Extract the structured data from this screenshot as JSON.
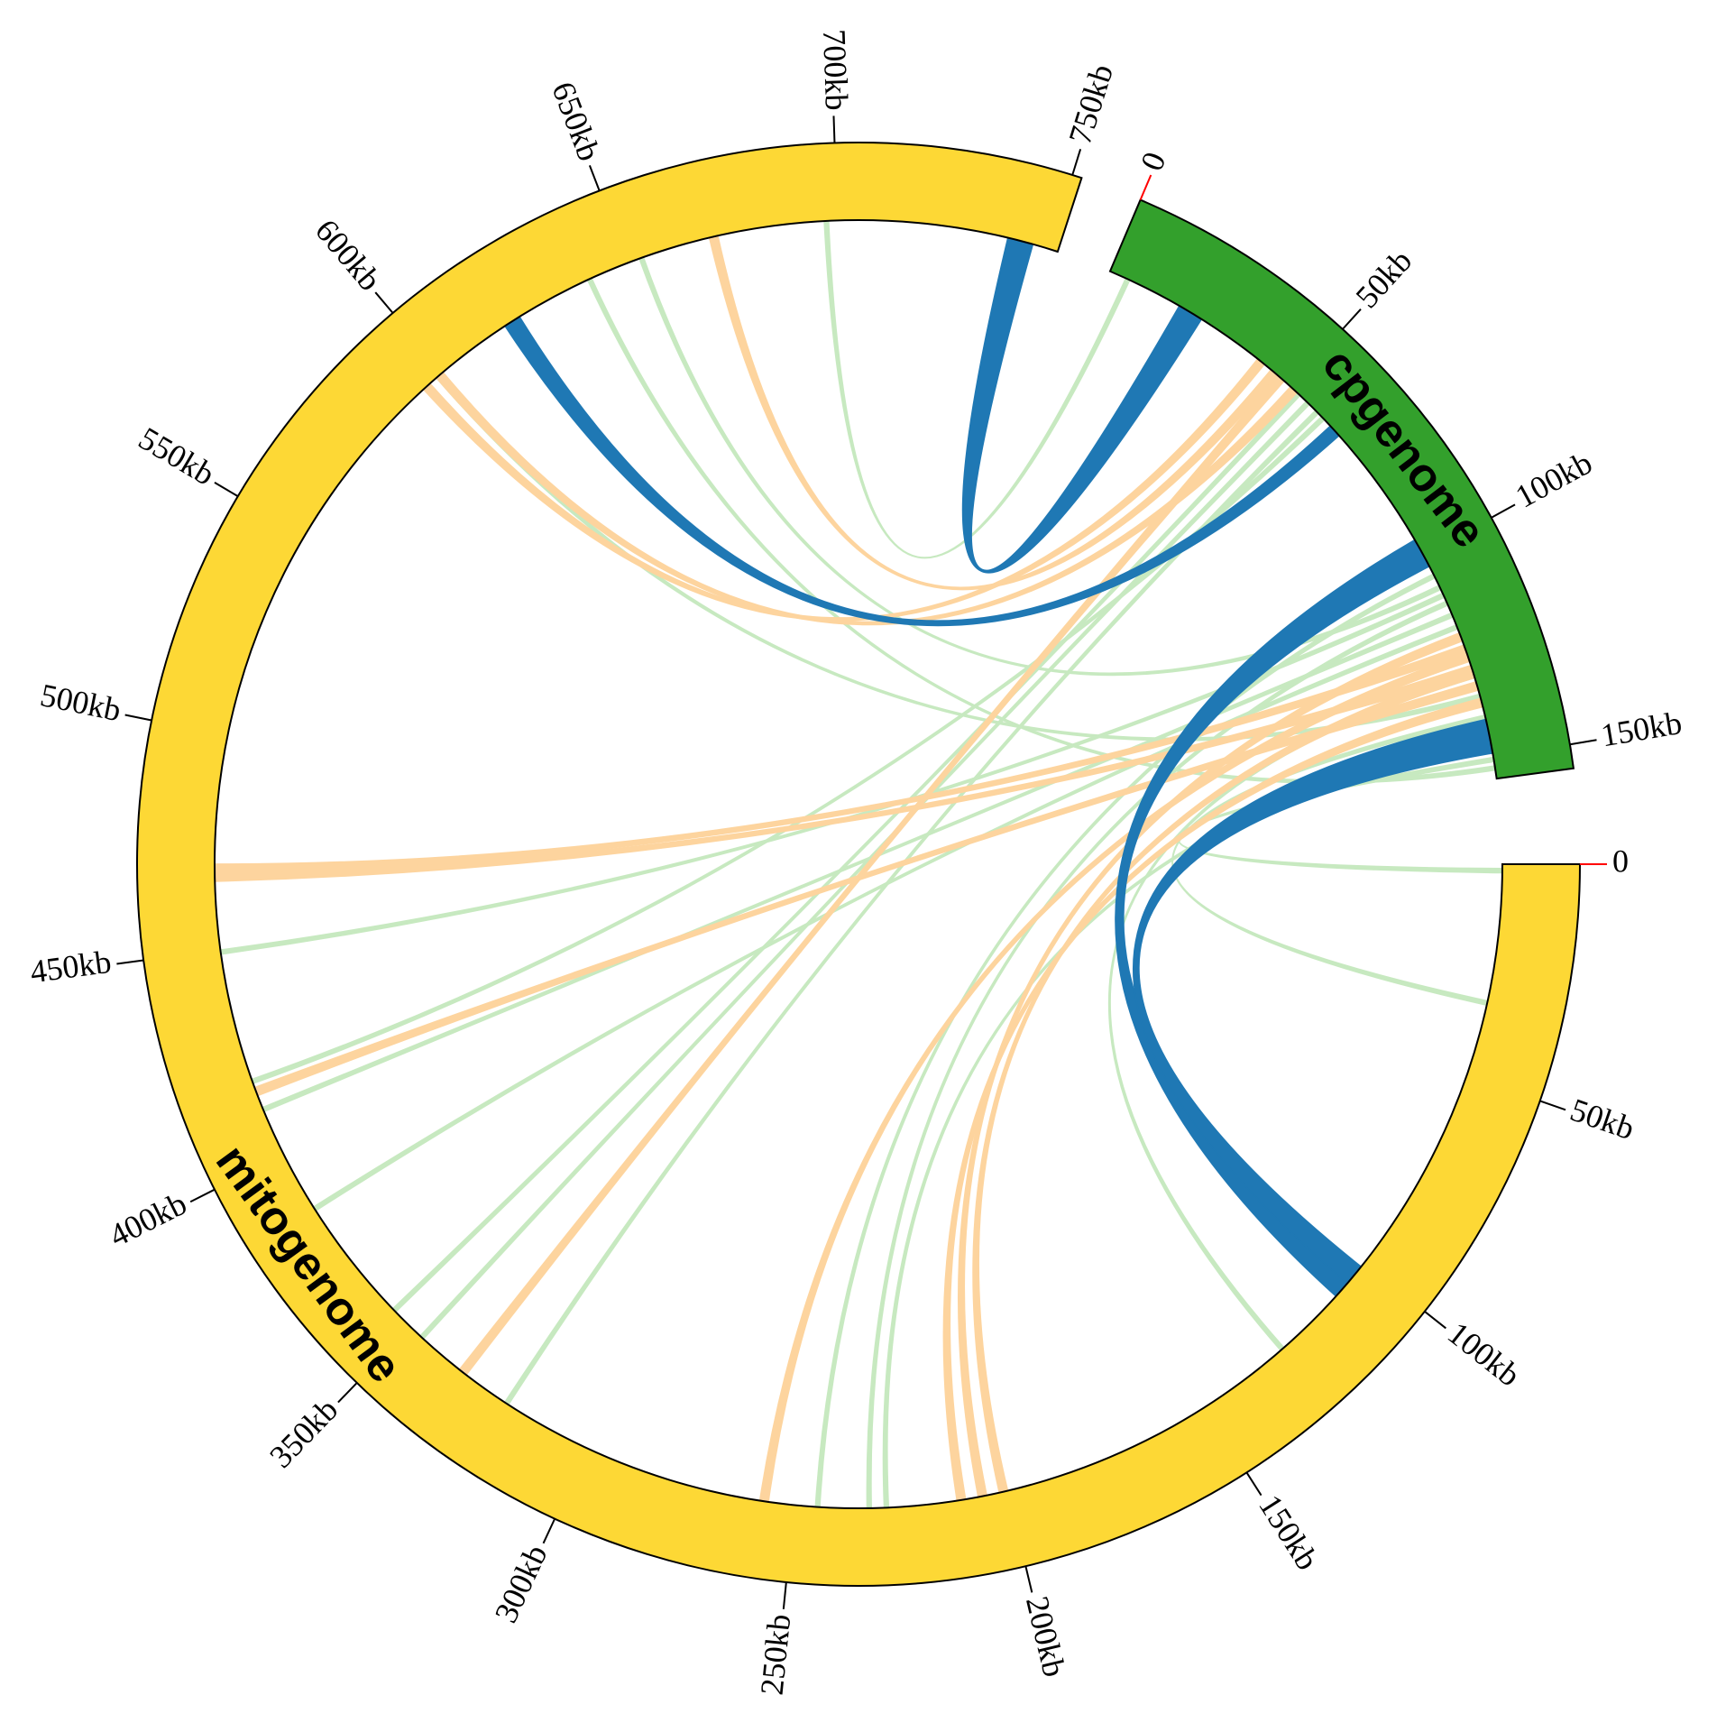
{
  "chart_data": {
    "type": "chord",
    "segments": [
      {
        "name": "mitogenome",
        "length": 752,
        "color": "#fdd835",
        "ticks": [
          0,
          {
            "value": 50,
            "label": "50kb"
          },
          {
            "value": 100,
            "label": "100kb"
          },
          {
            "value": 150,
            "label": "150kb"
          },
          {
            "value": 200,
            "label": "200kb"
          },
          {
            "value": 250,
            "label": "250kb"
          },
          {
            "value": 300,
            "label": "300kb"
          },
          {
            "value": 350,
            "label": "350kb"
          },
          {
            "value": 400,
            "label": "400kb"
          },
          {
            "value": 450,
            "label": "450kb"
          },
          {
            "value": 500,
            "label": "500kb"
          },
          {
            "value": 550,
            "label": "550kb"
          },
          {
            "value": 600,
            "label": "600kb"
          },
          {
            "value": 650,
            "label": "650kb"
          },
          {
            "value": 700,
            "label": "700kb"
          },
          {
            "value": 750,
            "label": "750kb"
          }
        ]
      },
      {
        "name": "cpgenome",
        "length": 155,
        "color": "#33a02c",
        "ticks": [
          0,
          {
            "value": 50,
            "label": "50kb"
          },
          {
            "value": 100,
            "label": "100kb"
          },
          {
            "value": 150,
            "label": "150kb"
          }
        ]
      }
    ],
    "zero_tick_color": "#ff0000",
    "links": [
      {
        "a": [
          1,
          4,
          5
        ],
        "b": [
          0,
          697,
          698
        ],
        "color": "#c7e9c0"
      },
      {
        "a": [
          1,
          150,
          151
        ],
        "b": [
          0,
          1,
          2
        ],
        "color": "#c7e9c0"
      },
      {
        "a": [
          1,
          140,
          141
        ],
        "b": [
          0,
          32,
          33
        ],
        "color": "#c7e9c0"
      },
      {
        "a": [
          1,
          130,
          131
        ],
        "b": [
          0,
          127,
          128
        ],
        "color": "#c7e9c0"
      },
      {
        "a": [
          1,
          105,
          106
        ],
        "b": [
          0,
          244,
          245
        ],
        "color": "#c7e9c0"
      },
      {
        "a": [
          1,
          110,
          111
        ],
        "b": [
          0,
          449,
          450
        ],
        "color": "#c7e9c0"
      },
      {
        "a": [
          1,
          60,
          61
        ],
        "b": [
          0,
          418,
          419
        ],
        "color": "#c7e9c0"
      },
      {
        "a": [
          1,
          115,
          116
        ],
        "b": [
          0,
          411,
          412
        ],
        "color": "#c7e9c0"
      },
      {
        "a": [
          1,
          118,
          119
        ],
        "b": [
          0,
          385,
          386
        ],
        "color": "#c7e9c0"
      },
      {
        "a": [
          1,
          55,
          56
        ],
        "b": [
          0,
          346,
          347
        ],
        "color": "#c7e9c0"
      },
      {
        "a": [
          1,
          58,
          59
        ],
        "b": [
          0,
          321,
          322
        ],
        "color": "#c7e9c0"
      },
      {
        "a": [
          1,
          135,
          136
        ],
        "b": [
          0,
          598,
          599
        ],
        "color": "#c7e9c0"
      },
      {
        "a": [
          1,
          108,
          109
        ],
        "b": [
          0,
          653,
          654
        ],
        "color": "#c7e9c0"
      },
      {
        "a": [
          1,
          145,
          146
        ],
        "b": [
          0,
          228,
          229
        ],
        "color": "#c7e9c0"
      },
      {
        "a": [
          1,
          112,
          113
        ],
        "b": [
          0,
          232,
          233
        ],
        "color": "#c7e9c0"
      },
      {
        "a": [
          1,
          152,
          153
        ],
        "b": [
          0,
          640,
          641
        ],
        "color": "#c7e9c0"
      },
      {
        "a": [
          1,
          52,
          53
        ],
        "b": [
          0,
          355,
          356
        ],
        "color": "#c7e9c0"
      },
      {
        "a": [
          1,
          40,
          42
        ],
        "b": [
          0,
          594,
          596
        ],
        "color": "#fdd49e"
      },
      {
        "a": [
          1,
          44,
          46
        ],
        "b": [
          0,
          670,
          672
        ],
        "color": "#fdd49e"
      },
      {
        "a": [
          1,
          128,
          130
        ],
        "b": [
          0,
          466,
          468
        ],
        "color": "#fdd49e"
      },
      {
        "a": [
          1,
          132,
          134
        ],
        "b": [
          0,
          415,
          417
        ],
        "color": "#fdd49e"
      },
      {
        "a": [
          1,
          46,
          48
        ],
        "b": [
          0,
          333,
          335
        ],
        "color": "#fdd49e"
      },
      {
        "a": [
          1,
          125,
          127
        ],
        "b": [
          0,
          256,
          258
        ],
        "color": "#fdd49e"
      },
      {
        "a": [
          1,
          120,
          122
        ],
        "b": [
          0,
          205,
          207
        ],
        "color": "#fdd49e"
      },
      {
        "a": [
          1,
          136,
          138
        ],
        "b": [
          0,
          210,
          212
        ],
        "color": "#fdd49e"
      },
      {
        "a": [
          1,
          50,
          52
        ],
        "b": [
          0,
          598,
          600
        ],
        "color": "#fdd49e"
      },
      {
        "a": [
          1,
          123,
          125
        ],
        "b": [
          0,
          468,
          470
        ],
        "color": "#fdd49e"
      },
      {
        "a": [
          1,
          129,
          131
        ],
        "b": [
          0,
          200,
          202
        ],
        "color": "#fdd49e"
      },
      {
        "a": [
          1,
          96,
          103
        ],
        "b": [
          0,
          104,
          110
        ],
        "color": "#1f78b4"
      },
      {
        "a": [
          1,
          141,
          149
        ],
        "b": [
          0,
          101,
          106
        ],
        "color": "#1f78b4"
      },
      {
        "a": [
          1,
          18,
          24
        ],
        "b": [
          0,
          740,
          746
        ],
        "color": "#1f78b4"
      },
      {
        "a": [
          1,
          63,
          66
        ],
        "b": [
          0,
          618,
          622
        ],
        "color": "#1f78b4"
      }
    ]
  }
}
